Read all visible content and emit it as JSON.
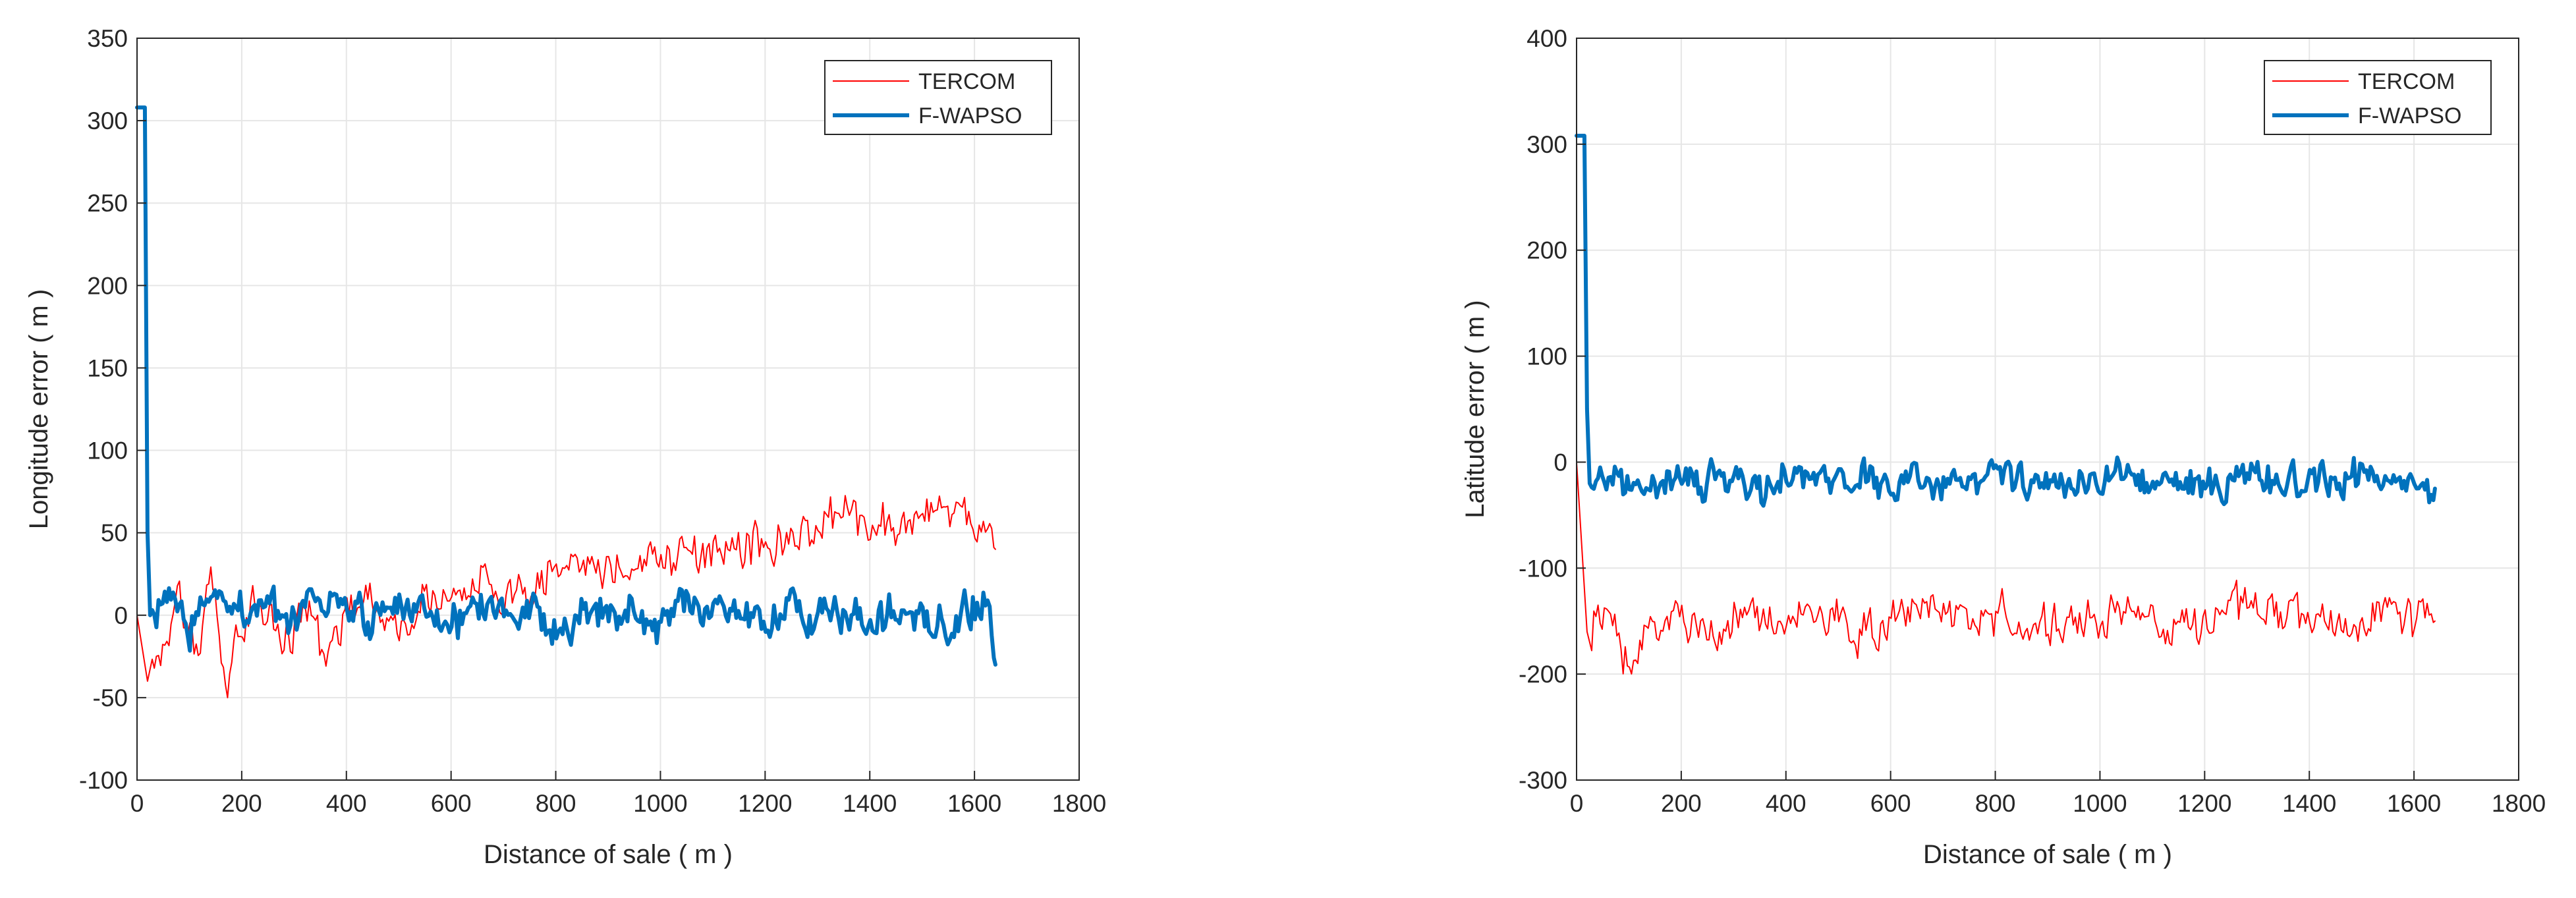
{
  "chart_data": [
    {
      "type": "line",
      "title": "",
      "xlabel": "Distance of sale ( m )",
      "ylabel": "Longitude error ( m )",
      "xlim": [
        0,
        1800
      ],
      "ylim": [
        -100,
        350
      ],
      "xticks": [
        0,
        200,
        400,
        600,
        800,
        1000,
        1200,
        1400,
        1600,
        1800
      ],
      "yticks": [
        -100,
        -50,
        0,
        50,
        100,
        150,
        200,
        250,
        300,
        350
      ],
      "grid": true,
      "legend_position": "top-right",
      "series": [
        {
          "name": "TERCOM",
          "color": "#ff0000",
          "x": [
            0,
            20,
            50,
            80,
            110,
            140,
            170,
            200,
            240,
            280,
            320,
            360,
            400,
            450,
            500,
            550,
            600,
            650,
            700,
            750,
            800,
            850,
            900,
            950,
            1000,
            1050,
            1100,
            1150,
            1200,
            1250,
            1300,
            1350,
            1400,
            1450,
            1500,
            1550,
            1600,
            1640
          ],
          "values": [
            0,
            -40,
            -10,
            5,
            -20,
            15,
            -35,
            -5,
            10,
            -15,
            5,
            -25,
            0,
            10,
            -5,
            15,
            5,
            20,
            10,
            15,
            25,
            30,
            25,
            35,
            30,
            40,
            35,
            45,
            40,
            50,
            45,
            65,
            55,
            50,
            60,
            65,
            60,
            40
          ],
          "noise_amplitude": 18
        },
        {
          "name": "F-WAPSO",
          "color": "#0072bd",
          "x": [
            0,
            5,
            15,
            20,
            25,
            60,
            100,
            150,
            200,
            250,
            300,
            350,
            400,
            450,
            500,
            550,
            600,
            650,
            700,
            750,
            800,
            850,
            900,
            950,
            1000,
            1050,
            1100,
            1150,
            1200,
            1250,
            1300,
            1350,
            1400,
            1450,
            1500,
            1550,
            1600,
            1630,
            1640
          ],
          "values": [
            308,
            308,
            308,
            50,
            0,
            5,
            -5,
            10,
            0,
            5,
            -5,
            10,
            0,
            -5,
            5,
            0,
            -5,
            5,
            0,
            5,
            -5,
            0,
            5,
            0,
            -5,
            5,
            0,
            5,
            -5,
            0,
            5,
            0,
            -5,
            5,
            0,
            -5,
            5,
            10,
            -30
          ],
          "noise_amplitude": 16
        }
      ]
    },
    {
      "type": "line",
      "title": "",
      "xlabel": "Distance of sale ( m )",
      "ylabel": "Latitude error ( m )",
      "xlim": [
        0,
        1800
      ],
      "ylim": [
        -300,
        400
      ],
      "xticks": [
        0,
        200,
        400,
        600,
        800,
        1000,
        1200,
        1400,
        1600,
        1800
      ],
      "yticks": [
        -300,
        -200,
        -100,
        0,
        100,
        200,
        300,
        400
      ],
      "grid": true,
      "legend_position": "top-right",
      "series": [
        {
          "name": "TERCOM",
          "color": "#ff0000",
          "x": [
            0,
            20,
            60,
            100,
            150,
            200,
            250,
            300,
            350,
            400,
            450,
            500,
            550,
            600,
            650,
            700,
            750,
            800,
            850,
            900,
            950,
            1000,
            1050,
            1100,
            1150,
            1200,
            1250,
            1300,
            1350,
            1400,
            1450,
            1500,
            1550,
            1600,
            1640
          ],
          "values": [
            0,
            -160,
            -150,
            -190,
            -150,
            -140,
            -160,
            -150,
            -140,
            -150,
            -145,
            -155,
            -160,
            -150,
            -140,
            -145,
            -150,
            -140,
            -160,
            -150,
            -145,
            -150,
            -140,
            -155,
            -150,
            -160,
            -140,
            -130,
            -150,
            -145,
            -155,
            -150,
            -140,
            -150,
            -150
          ],
          "noise_amplitude": 28
        },
        {
          "name": "F-WAPSO",
          "color": "#0072bd",
          "x": [
            0,
            5,
            15,
            20,
            25,
            60,
            100,
            150,
            200,
            250,
            300,
            350,
            400,
            450,
            500,
            550,
            600,
            650,
            700,
            750,
            800,
            850,
            900,
            950,
            1000,
            1050,
            1100,
            1150,
            1200,
            1250,
            1300,
            1350,
            1400,
            1450,
            1500,
            1550,
            1600,
            1640
          ],
          "values": [
            308,
            308,
            308,
            50,
            -20,
            -15,
            -25,
            -20,
            -10,
            -15,
            -20,
            -25,
            -10,
            -15,
            -20,
            -10,
            -25,
            -15,
            -20,
            -10,
            -15,
            -20,
            -25,
            -15,
            -20,
            -10,
            -20,
            -25,
            -15,
            -20,
            -10,
            -20,
            -15,
            -20,
            -10,
            -25,
            -20,
            -25
          ],
          "noise_amplitude": 22
        }
      ]
    }
  ]
}
